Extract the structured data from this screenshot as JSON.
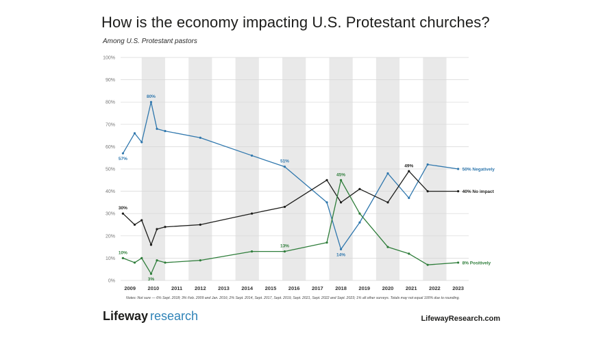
{
  "header": {
    "title": "How is the economy impacting U.S. Protestant churches?",
    "subtitle": "Among U.S. Protestant pastors"
  },
  "footer": {
    "note": "Notes: Not sure — 6% Sept. 2018; 3% Feb. 2009 and Jan. 2016; 2% Sept. 2014, Sept. 2017, Sept. 2019, Sept. 2021, Sept. 2022 and Sept. 2023; 1% all other surveys. Totals may not equal 100% due to rounding.",
    "brand_part1": "Lifeway",
    "brand_part2": "research",
    "website": "LifewayResearch.com"
  },
  "chart_data": {
    "type": "line",
    "title": "How is the economy impacting U.S. Protestant churches?",
    "subtitle": "Among U.S. Protestant pastors",
    "xlabel": "",
    "ylabel": "",
    "ylim": [
      0,
      100
    ],
    "xlim": [
      2008.6,
      2023.45
    ],
    "yticks": [
      "0%",
      "10%",
      "20%",
      "30%",
      "40%",
      "50%",
      "60%",
      "70%",
      "80%",
      "90%",
      "100%"
    ],
    "xticks": [
      2009,
      2010,
      2011,
      2012,
      2013,
      2014,
      2015,
      2016,
      2017,
      2018,
      2019,
      2020,
      2021,
      2022,
      2023
    ],
    "grid": true,
    "shaded_year_bands": [
      2010,
      2012,
      2014,
      2016,
      2018,
      2020,
      2022
    ],
    "series": [
      {
        "name": "Negatively",
        "end_label": "50% Negatively",
        "color": "#2f77ad",
        "x": [
          2008.7,
          2009.2,
          2009.5,
          2009.9,
          2010.15,
          2010.5,
          2012.0,
          2014.2,
          2015.6,
          2017.4,
          2018.0,
          2018.8,
          2020.0,
          2020.9,
          2021.7,
          2023.0
        ],
        "values": [
          57,
          66,
          62,
          80,
          68,
          67,
          64,
          56,
          51,
          35,
          14,
          26,
          48,
          37,
          52,
          50
        ],
        "point_labels": [
          {
            "index": 0,
            "text": "57%"
          },
          {
            "index": 3,
            "text": "80%"
          },
          {
            "index": 8,
            "text": "51%"
          },
          {
            "index": 10,
            "text": "14%"
          }
        ]
      },
      {
        "name": "No impact",
        "end_label": "40% No impact",
        "color": "#1d1d1b",
        "x": [
          2008.7,
          2009.2,
          2009.5,
          2009.9,
          2010.15,
          2010.5,
          2012.0,
          2014.2,
          2015.6,
          2017.4,
          2018.0,
          2018.8,
          2020.0,
          2020.9,
          2021.7,
          2023.0
        ],
        "values": [
          30,
          25,
          27,
          16,
          23,
          24,
          25,
          30,
          33,
          45,
          35,
          41,
          35,
          49,
          40,
          40
        ],
        "point_labels": [
          {
            "index": 0,
            "text": "30%"
          },
          {
            "index": 13,
            "text": "49%"
          }
        ]
      },
      {
        "name": "Positively",
        "end_label": "8% Positively",
        "color": "#2e7d3a",
        "x": [
          2008.7,
          2009.2,
          2009.5,
          2009.9,
          2010.15,
          2010.5,
          2012.0,
          2014.2,
          2015.6,
          2017.4,
          2018.0,
          2018.8,
          2020.0,
          2020.9,
          2021.7,
          2023.0
        ],
        "values": [
          10,
          8,
          10,
          3,
          9,
          8,
          9,
          13,
          13,
          17,
          45,
          30,
          15,
          12,
          7,
          8
        ],
        "point_labels": [
          {
            "index": 0,
            "text": "10%"
          },
          {
            "index": 3,
            "text": "3%"
          },
          {
            "index": 8,
            "text": "13%"
          },
          {
            "index": 10,
            "text": "45%"
          }
        ]
      }
    ]
  }
}
